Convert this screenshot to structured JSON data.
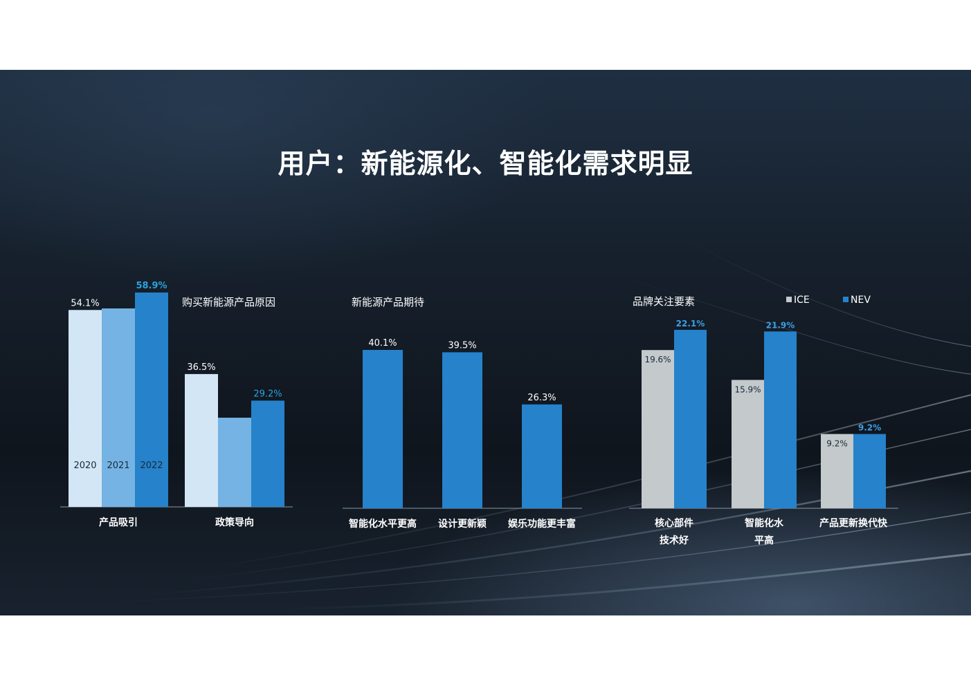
{
  "title": "用户：新能源化、智能化需求明显",
  "colors": {
    "year_2020": "#d2e6f5",
    "year_2021": "#74b3e3",
    "year_2022": "#2582cb",
    "nev": "#2582cb",
    "ice": "#c4c9cc",
    "highlight_label": "#29a3e0",
    "nev_label": "#3d9fe6"
  },
  "chart_data": [
    {
      "type": "bar",
      "title": "购买新能源产品原因",
      "categories": [
        "产品吸引",
        "政策导向"
      ],
      "series": [
        {
          "name": "2020",
          "values": [
            54.1,
            36.5
          ]
        },
        {
          "name": "2021",
          "values": [
            null,
            null
          ]
        },
        {
          "name": "2022",
          "values": [
            58.9,
            29.2
          ]
        }
      ],
      "data_labels": [
        [
          "54.1%",
          "",
          "58.9%"
        ],
        [
          "36.5%",
          "",
          "29.2%"
        ]
      ],
      "series_label_position": "inside-bottom",
      "ylim": [
        0,
        65
      ]
    },
    {
      "type": "bar",
      "title": "新能源产品期待",
      "categories": [
        "智能化水平更高",
        "设计更新颖",
        "娱乐功能更丰富"
      ],
      "values": [
        40.1,
        39.5,
        26.3
      ],
      "data_labels": [
        "40.1%",
        "39.5%",
        "26.3%"
      ],
      "ylim": [
        0,
        50
      ]
    },
    {
      "type": "bar",
      "title": "品牌关注要素",
      "categories": [
        [
          "核心部件",
          "技术好"
        ],
        [
          "智能化水",
          "平高"
        ],
        [
          "产品更新换代快"
        ]
      ],
      "series": [
        {
          "name": "ICE",
          "values": [
            19.6,
            15.9,
            9.2
          ]
        },
        {
          "name": "NEV",
          "values": [
            22.1,
            21.9,
            9.2
          ]
        }
      ],
      "data_labels": [
        [
          "19.6%",
          "22.1%"
        ],
        [
          "15.9%",
          "21.9%"
        ],
        [
          "9.2%",
          "9.2%"
        ]
      ],
      "legend": "top-right",
      "ylim": [
        0,
        25
      ]
    }
  ]
}
